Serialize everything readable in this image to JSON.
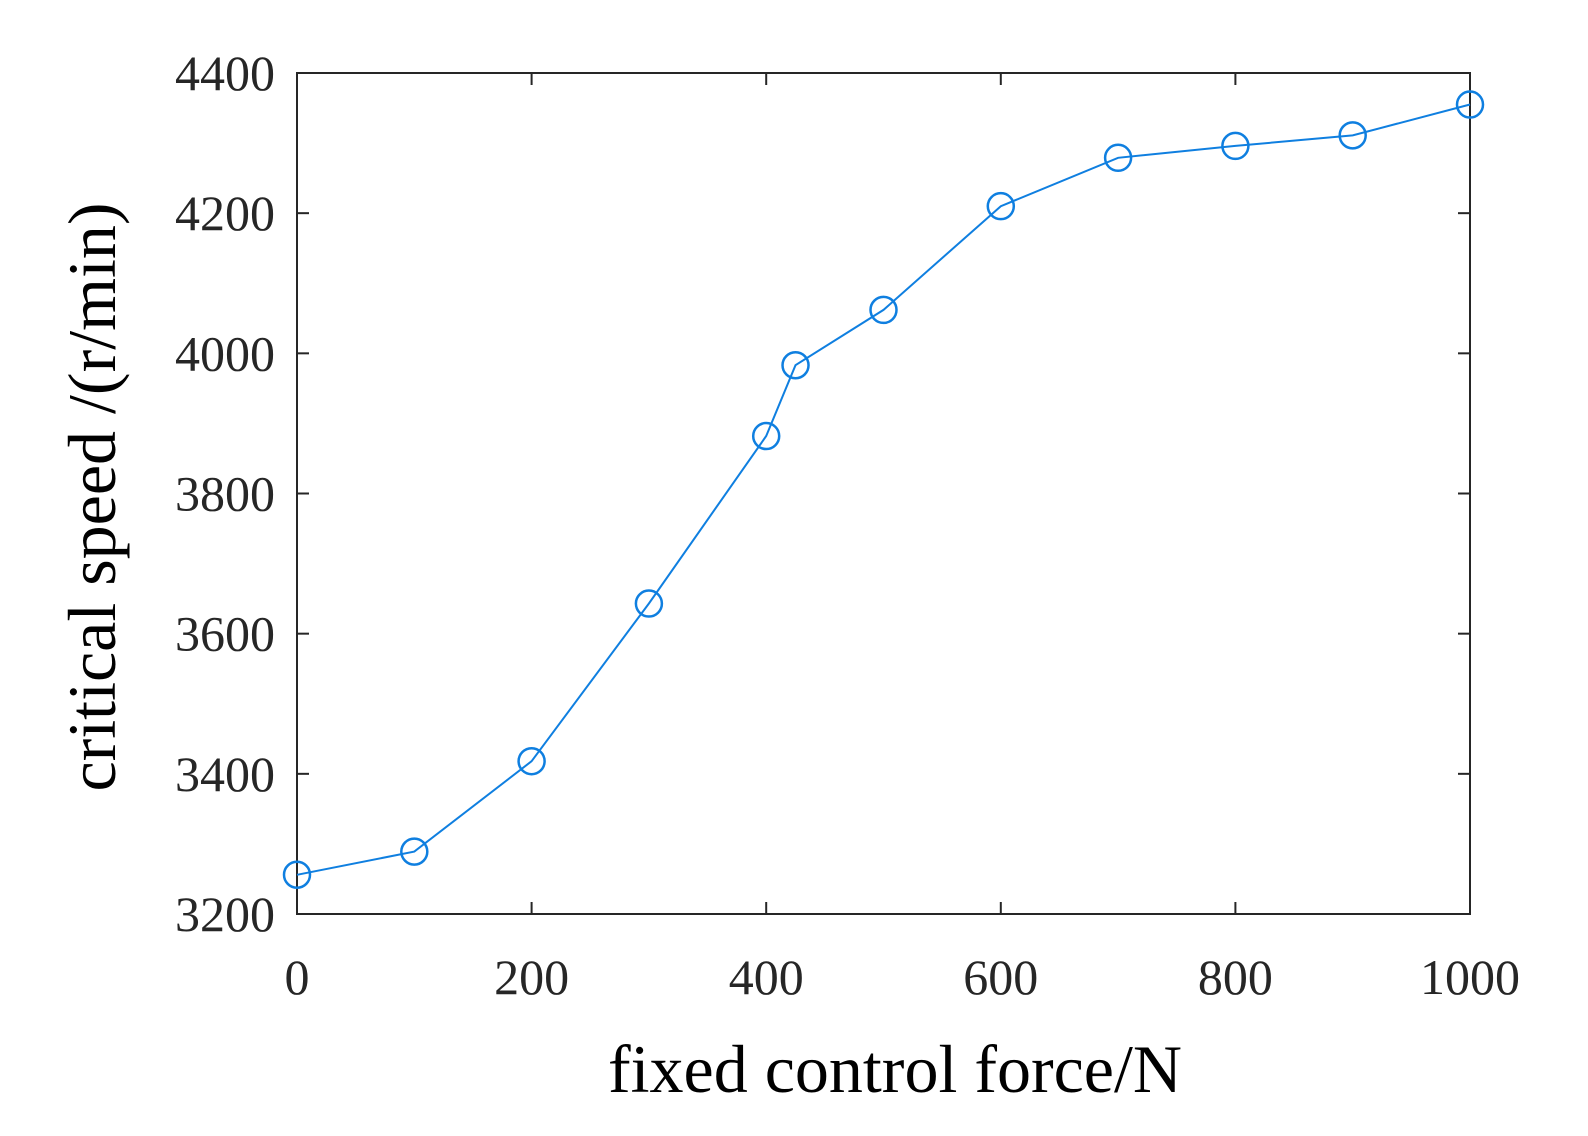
{
  "chart_data": {
    "type": "line",
    "xlabel": "fixed control force/N",
    "ylabel": "critical speed /(r/min)",
    "xlim": [
      0,
      1000
    ],
    "ylim": [
      3200,
      4400
    ],
    "xticks": [
      0,
      200,
      400,
      600,
      800,
      1000
    ],
    "yticks": [
      3200,
      3400,
      3600,
      3800,
      4000,
      4200,
      4400
    ],
    "grid": false,
    "legend": "none",
    "marker": "open-circle",
    "series_color": "#0f7fe0",
    "axis_color": "#262626",
    "series": [
      {
        "x": [
          0,
          100,
          200,
          300,
          400,
          425,
          500,
          600,
          700,
          800,
          900,
          1000
        ],
        "y": [
          3256,
          3289,
          3418,
          3643,
          3882,
          3983,
          4062,
          4210,
          4279,
          4296,
          4311,
          4355
        ]
      }
    ]
  }
}
